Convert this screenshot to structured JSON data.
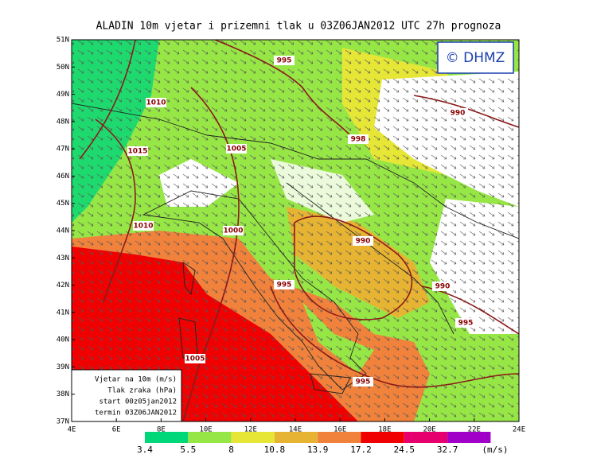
{
  "header": {
    "title": "ALADIN 10m vjetar i prizemni tlak u 03Z06JAN2012 UTC 27h prognoza",
    "copyright": "© DHMZ"
  },
  "axes": {
    "lat_labels": [
      "51N",
      "50N",
      "49N",
      "48N",
      "47N",
      "46N",
      "45N",
      "44N",
      "43N",
      "42N",
      "41N",
      "40N",
      "39N",
      "38N",
      "37N"
    ],
    "lon_labels": [
      "4E",
      "6E",
      "8E",
      "10E",
      "12E",
      "14E",
      "16E",
      "18E",
      "20E",
      "22E",
      "24E"
    ]
  },
  "isobars": {
    "labels": [
      "995",
      "1010",
      "990",
      "1015",
      "1005",
      "998",
      "1010",
      "1000",
      "990",
      "995",
      "990",
      "995",
      "1005",
      "995"
    ]
  },
  "info_box": {
    "lines": [
      "Vjetar na 10m (m/s)",
      "Tlak zraka (hPa)",
      "start 00z05jan2012",
      "termin 03Z06JAN2012"
    ]
  },
  "legend": {
    "bounds": [
      3.4,
      5.5,
      8,
      10.8,
      13.9,
      17.2,
      24.5,
      32.7
    ],
    "unit": "(m/s)",
    "colors": [
      "#00d778",
      "#96e646",
      "#e6e637",
      "#e6b432",
      "#f0823c",
      "#f00000",
      "#e6006e",
      "#a000c8"
    ]
  }
}
